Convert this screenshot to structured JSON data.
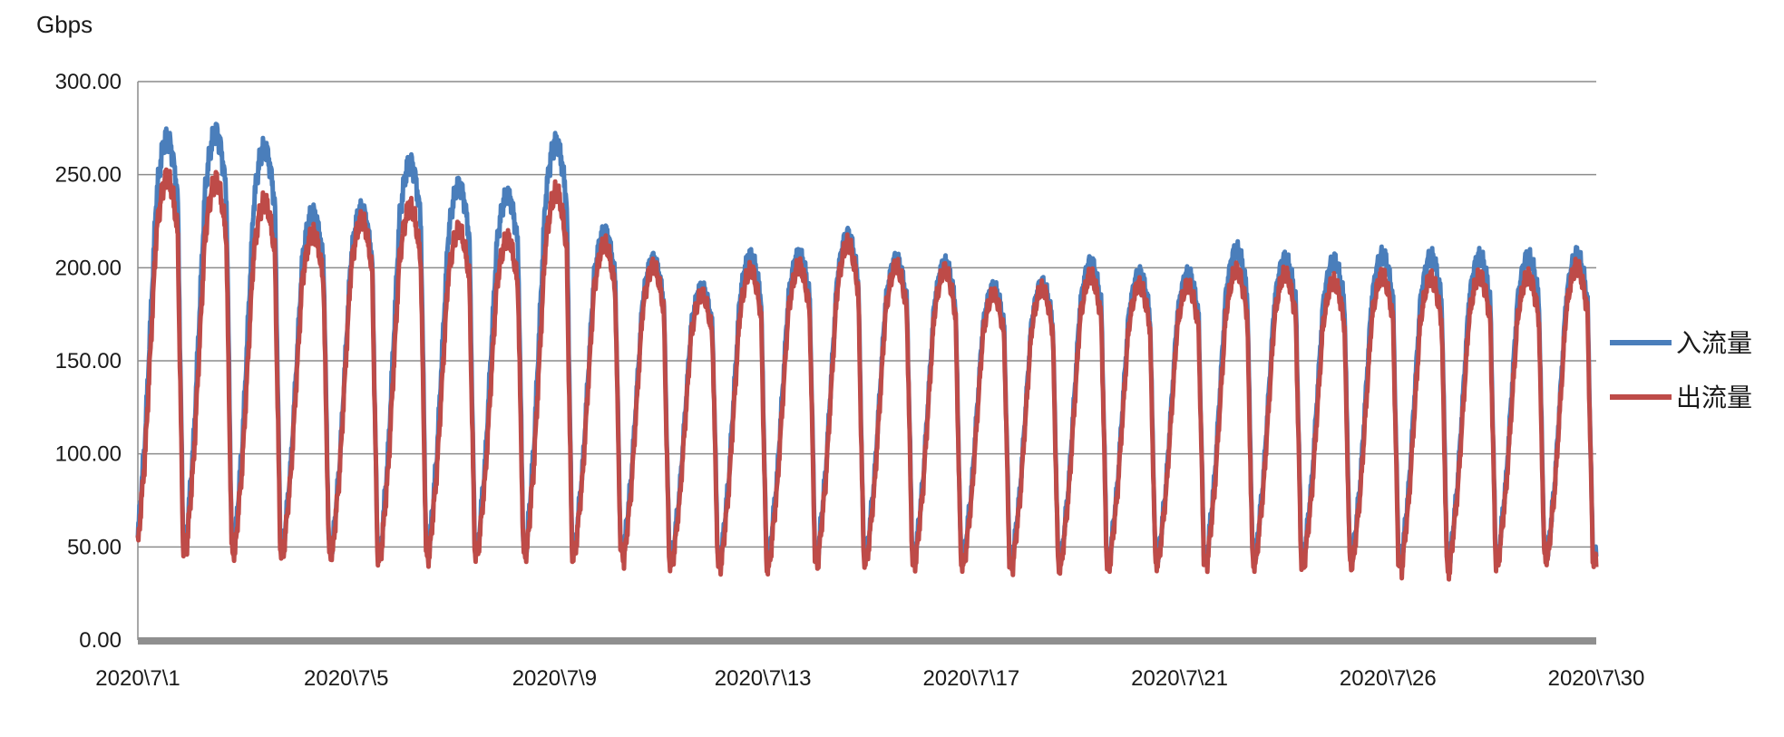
{
  "chart_data": {
    "type": "line",
    "ylabel": "Gbps",
    "ylim": [
      0,
      300
    ],
    "yticks": [
      "0.00",
      "50.00",
      "100.00",
      "150.00",
      "200.00",
      "250.00",
      "300.00"
    ],
    "xticks": [
      "2020\\7\\1",
      "2020\\7\\5",
      "2020\\7\\9",
      "2020\\7\\13",
      "2020\\7\\17",
      "2020\\7\\21",
      "2020\\7\\26",
      "2020\\7\\30"
    ],
    "grid": true,
    "legend_position": "right",
    "series": [
      {
        "name": "入流量",
        "color": "#4a7ebb",
        "daily_peaks": [
          270,
          273,
          265,
          230,
          232,
          257,
          245,
          240,
          268,
          220,
          205,
          190,
          207,
          208,
          218,
          205,
          203,
          190,
          192,
          203,
          197,
          197,
          210,
          205,
          204,
          207,
          206,
          206,
          206,
          207
        ],
        "daily_troughs": [
          55,
          52,
          52,
          50,
          48,
          48,
          50,
          50,
          50,
          50,
          48,
          45,
          44,
          47,
          48,
          47,
          46,
          45,
          44,
          44,
          45,
          45,
          46,
          46,
          46,
          46,
          43,
          45,
          48,
          45
        ]
      },
      {
        "name": "出流量",
        "color": "#be4b48",
        "daily_peaks": [
          248,
          246,
          235,
          218,
          225,
          232,
          220,
          215,
          240,
          212,
          200,
          185,
          198,
          200,
          212,
          200,
          198,
          185,
          188,
          195,
          190,
          190,
          198,
          196,
          192,
          195,
          194,
          195,
          195,
          200
        ],
        "daily_troughs": [
          50,
          48,
          48,
          47,
          45,
          45,
          47,
          47,
          47,
          47,
          42,
          40,
          40,
          42,
          44,
          42,
          42,
          40,
          40,
          41,
          42,
          42,
          42,
          42,
          42,
          42,
          38,
          42,
          45,
          43
        ]
      }
    ]
  }
}
